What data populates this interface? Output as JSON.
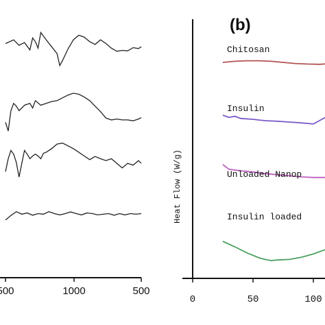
{
  "chart_data": [
    {
      "type": "line",
      "panel": "a (partially visible)",
      "title": "",
      "xlabel": "",
      "ylabel": "",
      "xlim": [
        1500,
        500
      ],
      "x_tick_labels": [
        "500",
        "1000",
        "500"
      ],
      "grid": false,
      "series": [
        {
          "x": [
            1500,
            1440,
            1400,
            1360,
            1320,
            1300,
            1280,
            1260,
            1240,
            1200,
            1160,
            1120,
            1100,
            1080,
            1040,
            1000,
            960,
            920,
            880,
            840,
            800,
            760,
            720,
            680,
            640,
            600,
            560,
            520,
            500
          ],
          "y": [
            0.62,
            0.7,
            0.58,
            0.64,
            0.48,
            0.74,
            0.66,
            0.52,
            0.86,
            0.7,
            0.55,
            0.4,
            0.14,
            0.25,
            0.5,
            0.7,
            0.8,
            0.76,
            0.66,
            0.6,
            0.7,
            0.62,
            0.52,
            0.45,
            0.47,
            0.46,
            0.53,
            0.51,
            0.55
          ]
        },
        {
          "x": [
            1500,
            1480,
            1460,
            1440,
            1420,
            1400,
            1360,
            1320,
            1300,
            1280,
            1240,
            1200,
            1160,
            1120,
            1080,
            1040,
            1000,
            960,
            920,
            880,
            840,
            800,
            760,
            720,
            680,
            640,
            600,
            560,
            520,
            500
          ],
          "y": [
            0.25,
            0.06,
            0.5,
            0.66,
            0.6,
            0.5,
            0.62,
            0.66,
            0.56,
            0.72,
            0.62,
            0.66,
            0.7,
            0.72,
            0.78,
            0.84,
            0.88,
            0.86,
            0.8,
            0.72,
            0.6,
            0.48,
            0.34,
            0.3,
            0.32,
            0.3,
            0.3,
            0.28,
            0.32,
            0.35
          ]
        },
        {
          "x": [
            1500,
            1480,
            1460,
            1440,
            1420,
            1400,
            1380,
            1360,
            1340,
            1320,
            1300,
            1280,
            1260,
            1240,
            1220,
            1200,
            1160,
            1120,
            1080,
            1040,
            1000,
            960,
            920,
            880,
            840,
            800,
            760,
            720,
            680,
            640,
            600,
            560,
            520,
            500
          ],
          "y": [
            0.22,
            0.5,
            0.68,
            0.6,
            0.42,
            0.1,
            0.4,
            0.68,
            0.6,
            0.5,
            0.56,
            0.6,
            0.56,
            0.5,
            0.62,
            0.64,
            0.72,
            0.82,
            0.84,
            0.78,
            0.72,
            0.64,
            0.56,
            0.48,
            0.55,
            0.5,
            0.46,
            0.5,
            0.4,
            0.3,
            0.4,
            0.36,
            0.46,
            0.4
          ]
        },
        {
          "x": [
            1500,
            1460,
            1420,
            1380,
            1340,
            1300,
            1260,
            1220,
            1180,
            1140,
            1100,
            1060,
            1020,
            980,
            940,
            900,
            860,
            820,
            780,
            740,
            700,
            660,
            620,
            580,
            540,
            500
          ],
          "y": [
            0.3,
            0.44,
            0.56,
            0.48,
            0.52,
            0.45,
            0.5,
            0.48,
            0.56,
            0.5,
            0.46,
            0.5,
            0.55,
            0.5,
            0.46,
            0.52,
            0.5,
            0.46,
            0.48,
            0.5,
            0.45,
            0.5,
            0.46,
            0.5,
            0.48,
            0.5
          ]
        }
      ]
    },
    {
      "type": "line",
      "panel": "b",
      "panel_label": "(b)",
      "title": "",
      "xlabel": "",
      "ylabel": "Heat Flow (W/g)",
      "xlim": [
        0,
        130
      ],
      "x_tick_labels": [
        "0",
        "50",
        "100"
      ],
      "grid": false,
      "series": [
        {
          "name": "Chitosan",
          "color": "#b25252",
          "x": [
            25,
            35,
            45,
            55,
            65,
            75,
            85,
            95,
            105,
            115,
            130
          ],
          "y": [
            0.1,
            0.14,
            0.16,
            0.16,
            0.14,
            0.1,
            0.06,
            0.04,
            0.03,
            0.06,
            0.1
          ]
        },
        {
          "name": "Insulin",
          "color": "#7a5ac8",
          "x": [
            25,
            30,
            35,
            40,
            50,
            60,
            70,
            80,
            90,
            95,
            100,
            105,
            110,
            115,
            120,
            130
          ],
          "y": [
            0.5,
            0.42,
            0.46,
            0.38,
            0.35,
            0.3,
            0.28,
            0.25,
            0.22,
            0.2,
            0.18,
            0.3,
            0.42,
            0.6,
            0.78,
            1.0
          ]
        },
        {
          "name": "Unloaded Nanop",
          "color": "#c061c0",
          "x": [
            25,
            30,
            40,
            50,
            60,
            70,
            80,
            90,
            100,
            110,
            120,
            130
          ],
          "y": [
            0.55,
            0.38,
            0.32,
            0.28,
            0.22,
            0.18,
            0.14,
            0.1,
            0.08,
            0.08,
            0.1,
            0.16
          ]
        },
        {
          "name": "Insulin loaded",
          "color": "#4aa060",
          "x": [
            25,
            35,
            45,
            55,
            60,
            65,
            70,
            80,
            90,
            100,
            110,
            120,
            130
          ],
          "y": [
            0.2,
            0.0,
            -0.22,
            -0.4,
            -0.46,
            -0.5,
            -0.48,
            -0.46,
            -0.38,
            -0.26,
            -0.1,
            0.02,
            0.08
          ]
        }
      ]
    }
  ]
}
